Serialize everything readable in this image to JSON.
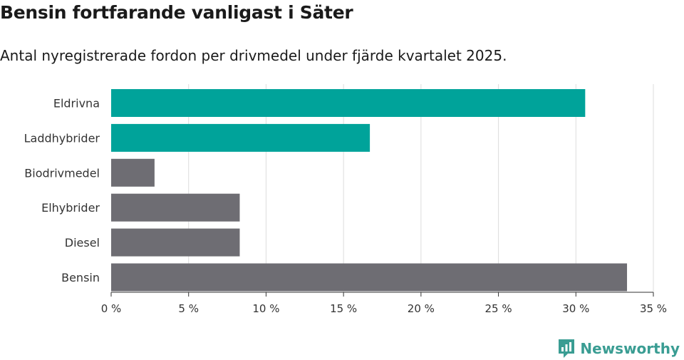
{
  "header": {
    "title": "Bensin fortfarande vanligast i Säter",
    "subtitle": "Antal nyregistrerade fordon per drivmedel under fjärde kvartalet 2025."
  },
  "brand": {
    "name": "Newsworthy"
  },
  "colors": {
    "accent": "#00a39a",
    "neutral": "#6e6d73",
    "grid": "#dddddd",
    "brand": "#3a9d93"
  },
  "chart_data": {
    "type": "bar",
    "orientation": "horizontal",
    "categories": [
      "Eldrivna",
      "Laddhybrider",
      "Biodrivmedel",
      "Elhybrider",
      "Diesel",
      "Bensin"
    ],
    "values": [
      30.6,
      16.7,
      2.8,
      8.3,
      8.3,
      33.3
    ],
    "highlight": [
      true,
      true,
      false,
      false,
      false,
      false
    ],
    "xlim": [
      0,
      35
    ],
    "xticks": [
      0,
      5,
      10,
      15,
      20,
      25,
      30,
      35
    ],
    "xtick_labels": [
      "0 %",
      "5 %",
      "10 %",
      "15 %",
      "20 %",
      "25 %",
      "30 %",
      "35 %"
    ],
    "unit": "%",
    "grid": true,
    "title": "Bensin fortfarande vanligast i Säter",
    "subtitle": "Antal nyregistrerade fordon per drivmedel under fjärde kvartalet 2025."
  }
}
